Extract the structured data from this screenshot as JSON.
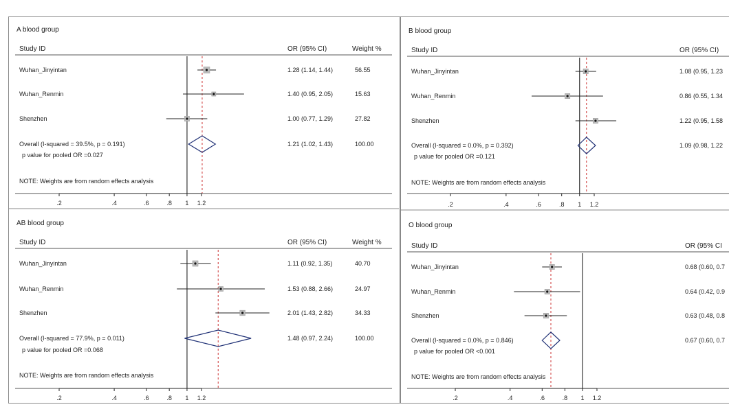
{
  "chart_data": [
    {
      "type": "forest",
      "title": "A blood group",
      "columns": {
        "study": "Study ID",
        "or": "OR (95% CI)",
        "weight": "Weight %"
      },
      "xscale": "log",
      "xticks": [
        ".2",
        ".4",
        ".6",
        ".8",
        "1",
        "1.2"
      ],
      "studies": [
        {
          "name": "Wuhan_Jinyintan",
          "or": 1.28,
          "lo": 1.14,
          "hi": 1.44,
          "or_text": "1.28 (1.14, 1.44)",
          "weight_text": "56.55"
        },
        {
          "name": "Wuhan_Renmin",
          "or": 1.4,
          "lo": 0.95,
          "hi": 2.05,
          "or_text": "1.40 (0.95, 2.05)",
          "weight_text": "15.63"
        },
        {
          "name": "Shenzhen",
          "or": 1.0,
          "lo": 0.77,
          "hi": 1.29,
          "or_text": "1.00 (0.77, 1.29)",
          "weight_text": "27.82"
        }
      ],
      "overall": {
        "label": "Overall  (I-squared = 39.5%, p = 0.191)",
        "or": 1.21,
        "lo": 1.02,
        "hi": 1.43,
        "or_text": "1.21 (1.02, 1.43)",
        "weight_text": "100.00"
      },
      "pvalue_text": "p value for pooled OR =0.027",
      "note": "NOTE: Weights are from random effects analysis"
    },
    {
      "type": "forest",
      "title": "B blood group",
      "columns": {
        "study": "Study ID",
        "or": "OR (95% CI)",
        "weight": ""
      },
      "xscale": "log",
      "xticks": [
        ".2",
        ".4",
        ".6",
        ".8",
        "1",
        "1.2"
      ],
      "studies": [
        {
          "name": "Wuhan_Jinyintan",
          "or": 1.08,
          "lo": 0.95,
          "hi": 1.23,
          "or_text": "1.08 (0.95, 1.23",
          "weight_text": ""
        },
        {
          "name": "Wuhan_Renmin",
          "or": 0.86,
          "lo": 0.55,
          "hi": 1.34,
          "or_text": "0.86 (0.55, 1.34",
          "weight_text": ""
        },
        {
          "name": "Shenzhen",
          "or": 1.22,
          "lo": 0.95,
          "hi": 1.58,
          "or_text": "1.22 (0.95, 1.58",
          "weight_text": ""
        }
      ],
      "overall": {
        "label": "Overall  (I-squared = 0.0%, p = 0.392)",
        "or": 1.09,
        "lo": 0.98,
        "hi": 1.22,
        "or_text": "1.09 (0.98, 1.22",
        "weight_text": ""
      },
      "pvalue_text": "p value for pooled OR =0.121",
      "note": "NOTE: Weights are from random effects analysis"
    },
    {
      "type": "forest",
      "title": "AB blood group",
      "columns": {
        "study": "Study ID",
        "or": "OR (95% CI)",
        "weight": "Weight %"
      },
      "xscale": "log",
      "xticks": [
        ".2",
        ".4",
        ".6",
        ".8",
        "1",
        "1.2"
      ],
      "studies": [
        {
          "name": "Wuhan_Jinyintan",
          "or": 1.11,
          "lo": 0.92,
          "hi": 1.35,
          "or_text": "1.11 (0.92, 1.35)",
          "weight_text": "40.70"
        },
        {
          "name": "Wuhan_Renmin",
          "or": 1.53,
          "lo": 0.88,
          "hi": 2.66,
          "or_text": "1.53 (0.88, 2.66)",
          "weight_text": "24.97"
        },
        {
          "name": "Shenzhen",
          "or": 2.01,
          "lo": 1.43,
          "hi": 2.82,
          "or_text": "2.01 (1.43, 2.82)",
          "weight_text": "34.33"
        }
      ],
      "overall": {
        "label": "Overall  (I-squared = 77.9%, p = 0.011)",
        "or": 1.48,
        "lo": 0.97,
        "hi": 2.24,
        "or_text": "1.48 (0.97, 2.24)",
        "weight_text": "100.00"
      },
      "pvalue_text": "p value for pooled OR =0.068",
      "note": "NOTE: Weights are from random effects analysis"
    },
    {
      "type": "forest",
      "title": "O blood group",
      "columns": {
        "study": "Study ID",
        "or": "OR (95% CI",
        "weight": ""
      },
      "xscale": "log",
      "xticks": [
        ".2",
        ".4",
        ".6",
        ".8",
        "1",
        "1.2"
      ],
      "studies": [
        {
          "name": "Wuhan_Jinyintan",
          "or": 0.68,
          "lo": 0.6,
          "hi": 0.77,
          "or_text": "0.68 (0.60, 0.7",
          "weight_text": ""
        },
        {
          "name": "Wuhan_Renmin",
          "or": 0.64,
          "lo": 0.42,
          "hi": 0.97,
          "or_text": "0.64 (0.42, 0.9",
          "weight_text": ""
        },
        {
          "name": "Shenzhen",
          "or": 0.63,
          "lo": 0.48,
          "hi": 0.82,
          "or_text": "0.63 (0.48, 0.8",
          "weight_text": ""
        }
      ],
      "overall": {
        "label": "Overall  (I-squared = 0.0%, p = 0.846)",
        "or": 0.67,
        "lo": 0.6,
        "hi": 0.75,
        "or_text": "0.67 (0.60, 0.7",
        "weight_text": ""
      },
      "pvalue_text": "p value for pooled OR <0.001",
      "note": "NOTE: Weights are from random effects analysis"
    }
  ]
}
